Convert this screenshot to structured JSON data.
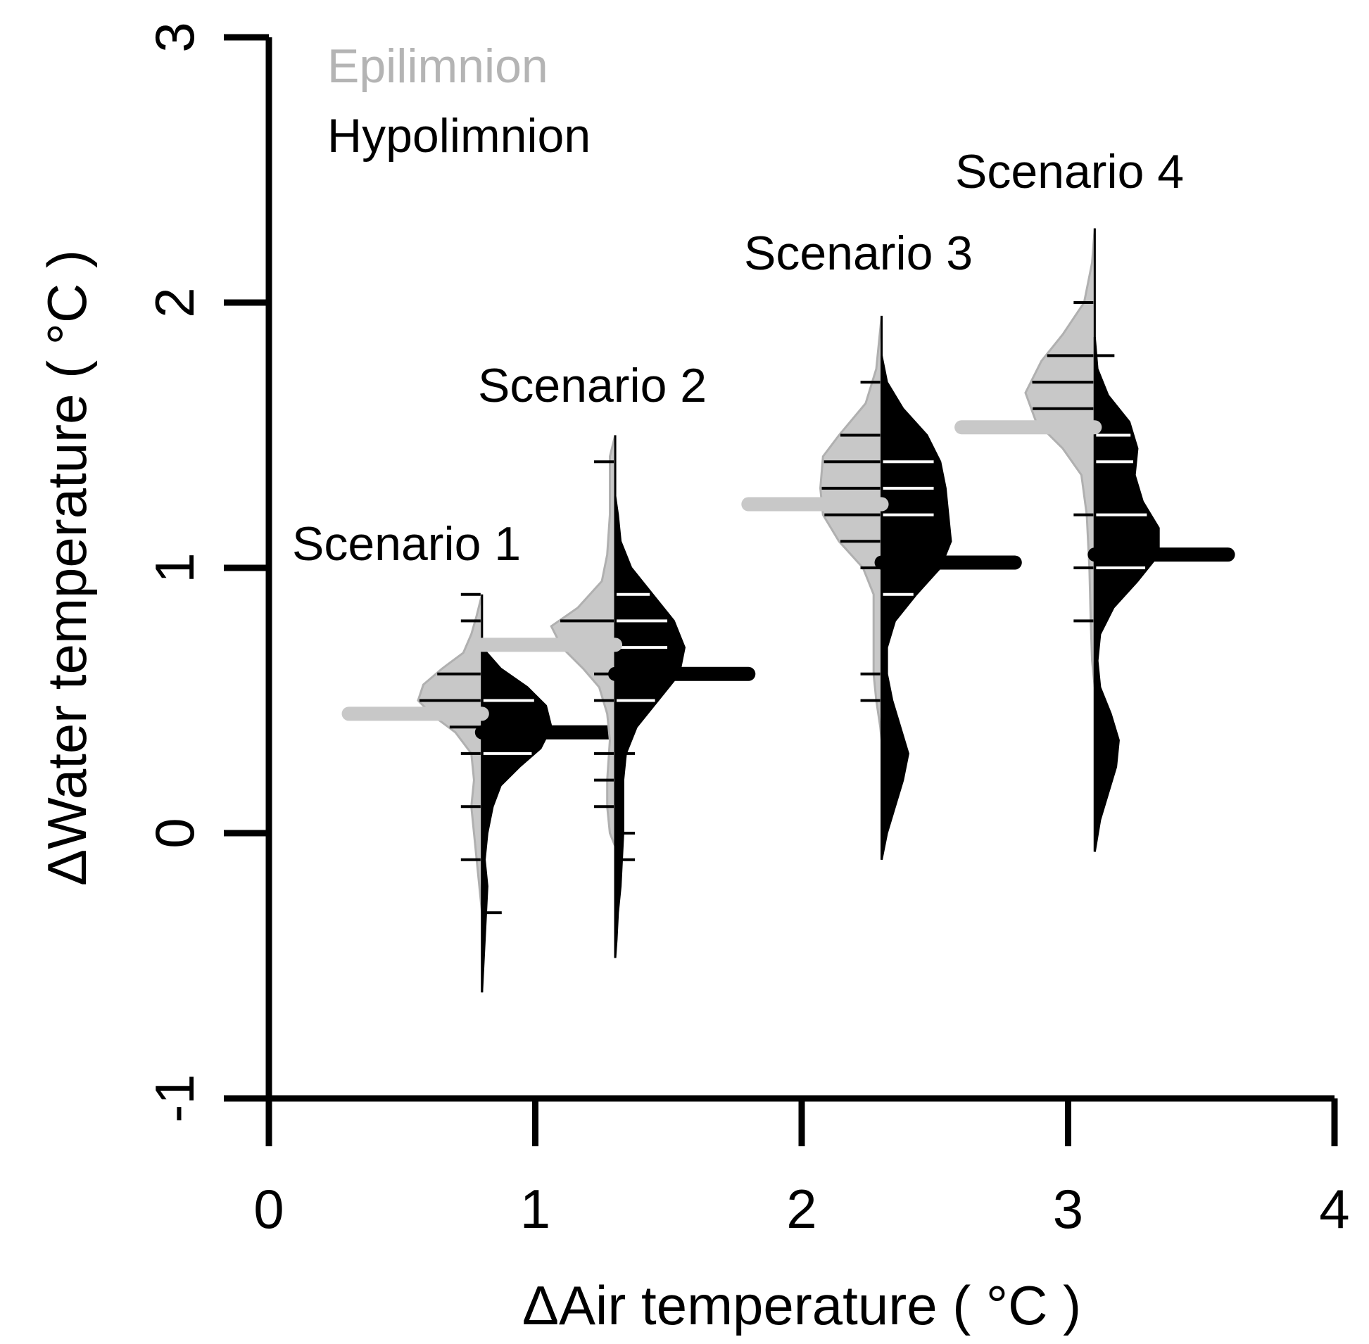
{
  "chart_data": {
    "type": "bean-plot",
    "xlabel": "ΔAir temperature ( °C )",
    "ylabel": "ΔWater temperature ( °C )",
    "xlim": [
      0,
      4
    ],
    "ylim": [
      -1,
      3
    ],
    "x_ticks": [
      "0",
      "1",
      "2",
      "3",
      "4"
    ],
    "y_ticks": [
      "-1",
      "0",
      "1",
      "2",
      "3"
    ],
    "legend": {
      "placement": "top-left",
      "entries": [
        {
          "label": "Epilimnion",
          "color": "#c8c8c8"
        },
        {
          "label": "Hypolimnion",
          "color": "#000000"
        }
      ]
    },
    "series": [
      {
        "name": "Scenario 1",
        "x": 0.8,
        "epilimnion": {
          "mean": 0.45,
          "observations": [
            0.9,
            0.8,
            0.6,
            0.5,
            0.4,
            0.3,
            0.1,
            -0.1
          ],
          "density": [
            [
              0.9,
              0.0
            ],
            [
              0.82,
              0.02
            ],
            [
              0.75,
              0.04
            ],
            [
              0.68,
              0.07
            ],
            [
              0.62,
              0.15
            ],
            [
              0.56,
              0.22
            ],
            [
              0.5,
              0.24
            ],
            [
              0.44,
              0.18
            ],
            [
              0.38,
              0.1
            ],
            [
              0.3,
              0.04
            ],
            [
              0.2,
              0.03
            ],
            [
              0.1,
              0.04
            ],
            [
              0.0,
              0.03
            ],
            [
              -0.1,
              0.02
            ],
            [
              -0.2,
              0.01
            ],
            [
              -0.3,
              0.0
            ]
          ]
        },
        "hypolimnion": {
          "mean": 0.38,
          "observations": [
            0.6,
            0.5,
            0.4,
            0.3,
            0.2,
            -0.3
          ],
          "density": [
            [
              0.7,
              0.0
            ],
            [
              0.62,
              0.07
            ],
            [
              0.55,
              0.17
            ],
            [
              0.48,
              0.24
            ],
            [
              0.4,
              0.26
            ],
            [
              0.32,
              0.22
            ],
            [
              0.25,
              0.14
            ],
            [
              0.18,
              0.07
            ],
            [
              0.1,
              0.04
            ],
            [
              0.0,
              0.02
            ],
            [
              -0.1,
              0.01
            ],
            [
              -0.2,
              0.02
            ],
            [
              -0.3,
              0.015
            ],
            [
              -0.4,
              0.01
            ],
            [
              -0.5,
              0.005
            ],
            [
              -0.6,
              0.0
            ]
          ]
        }
      },
      {
        "name": "Scenario 2",
        "x": 1.3,
        "epilimnion": {
          "mean": 0.71,
          "observations": [
            1.4,
            0.8,
            0.7,
            0.6,
            0.5,
            0.3,
            0.2,
            0.1
          ],
          "density": [
            [
              1.5,
              0.0
            ],
            [
              1.42,
              0.02
            ],
            [
              1.32,
              0.02
            ],
            [
              1.2,
              0.02
            ],
            [
              1.05,
              0.03
            ],
            [
              0.95,
              0.05
            ],
            [
              0.85,
              0.14
            ],
            [
              0.78,
              0.24
            ],
            [
              0.7,
              0.2
            ],
            [
              0.62,
              0.12
            ],
            [
              0.55,
              0.06
            ],
            [
              0.45,
              0.03
            ],
            [
              0.35,
              0.02
            ],
            [
              0.2,
              0.03
            ],
            [
              0.1,
              0.03
            ],
            [
              0.0,
              0.02
            ],
            [
              -0.05,
              0.0
            ]
          ]
        },
        "hypolimnion": {
          "mean": 0.6,
          "observations": [
            0.9,
            0.8,
            0.7,
            0.6,
            0.5,
            0.3,
            0.0,
            -0.1
          ],
          "density": [
            [
              1.27,
              0.0
            ],
            [
              1.2,
              0.01
            ],
            [
              1.1,
              0.02
            ],
            [
              1.0,
              0.06
            ],
            [
              0.9,
              0.14
            ],
            [
              0.8,
              0.22
            ],
            [
              0.7,
              0.26
            ],
            [
              0.6,
              0.24
            ],
            [
              0.5,
              0.16
            ],
            [
              0.4,
              0.08
            ],
            [
              0.3,
              0.04
            ],
            [
              0.2,
              0.03
            ],
            [
              0.1,
              0.03
            ],
            [
              0.0,
              0.03
            ],
            [
              -0.1,
              0.025
            ],
            [
              -0.2,
              0.02
            ],
            [
              -0.3,
              0.01
            ],
            [
              -0.4,
              0.005
            ],
            [
              -0.47,
              0.0
            ]
          ]
        }
      },
      {
        "name": "Scenario 3",
        "x": 2.3,
        "epilimnion": {
          "mean": 1.24,
          "observations": [
            1.7,
            1.5,
            1.4,
            1.3,
            1.2,
            1.1,
            1.0,
            0.6,
            0.5
          ],
          "density": [
            [
              1.95,
              0.0
            ],
            [
              1.85,
              0.01
            ],
            [
              1.75,
              0.02
            ],
            [
              1.62,
              0.06
            ],
            [
              1.5,
              0.16
            ],
            [
              1.42,
              0.22
            ],
            [
              1.3,
              0.23
            ],
            [
              1.2,
              0.22
            ],
            [
              1.1,
              0.16
            ],
            [
              1.0,
              0.07
            ],
            [
              0.9,
              0.03
            ],
            [
              0.75,
              0.03
            ],
            [
              0.6,
              0.03
            ],
            [
              0.5,
              0.02
            ],
            [
              0.4,
              0.005
            ],
            [
              0.35,
              0.0
            ]
          ]
        },
        "hypolimnion": {
          "mean": 1.02,
          "observations": [
            1.4,
            1.3,
            1.2,
            1.0,
            0.9,
            0.3
          ],
          "density": [
            [
              1.8,
              0.0
            ],
            [
              1.7,
              0.02
            ],
            [
              1.6,
              0.08
            ],
            [
              1.5,
              0.17
            ],
            [
              1.4,
              0.22
            ],
            [
              1.3,
              0.24
            ],
            [
              1.2,
              0.25
            ],
            [
              1.1,
              0.26
            ],
            [
              1.0,
              0.22
            ],
            [
              0.9,
              0.13
            ],
            [
              0.8,
              0.05
            ],
            [
              0.7,
              0.02
            ],
            [
              0.6,
              0.02
            ],
            [
              0.5,
              0.04
            ],
            [
              0.4,
              0.07
            ],
            [
              0.3,
              0.1
            ],
            [
              0.2,
              0.08
            ],
            [
              0.1,
              0.05
            ],
            [
              0.0,
              0.02
            ],
            [
              -0.1,
              0.0
            ]
          ]
        }
      },
      {
        "name": "Scenario 4",
        "x": 3.1,
        "epilimnion": {
          "mean": 1.53,
          "observations": [
            2.0,
            1.8,
            1.7,
            1.6,
            1.2,
            1.0,
            0.8
          ],
          "density": [
            [
              2.28,
              0.0
            ],
            [
              2.15,
              0.01
            ],
            [
              2.0,
              0.04
            ],
            [
              1.88,
              0.12
            ],
            [
              1.78,
              0.2
            ],
            [
              1.66,
              0.26
            ],
            [
              1.55,
              0.22
            ],
            [
              1.45,
              0.12
            ],
            [
              1.35,
              0.05
            ],
            [
              1.2,
              0.03
            ],
            [
              1.0,
              0.02
            ],
            [
              0.8,
              0.015
            ],
            [
              0.65,
              0.01
            ],
            [
              0.55,
              0.0
            ]
          ]
        },
        "hypolimnion": {
          "mean": 1.05,
          "observations": [
            1.8,
            1.5,
            1.4,
            1.2,
            1.0,
            0.4,
            0.3
          ],
          "density": [
            [
              1.87,
              0.0
            ],
            [
              1.75,
              0.01
            ],
            [
              1.65,
              0.05
            ],
            [
              1.55,
              0.13
            ],
            [
              1.45,
              0.16
            ],
            [
              1.35,
              0.15
            ],
            [
              1.25,
              0.18
            ],
            [
              1.15,
              0.24
            ],
            [
              1.05,
              0.24
            ],
            [
              0.95,
              0.16
            ],
            [
              0.85,
              0.07
            ],
            [
              0.75,
              0.02
            ],
            [
              0.65,
              0.01
            ],
            [
              0.55,
              0.02
            ],
            [
              0.45,
              0.06
            ],
            [
              0.35,
              0.09
            ],
            [
              0.25,
              0.08
            ],
            [
              0.15,
              0.05
            ],
            [
              0.05,
              0.02
            ],
            [
              -0.07,
              0.0
            ]
          ]
        }
      }
    ]
  }
}
